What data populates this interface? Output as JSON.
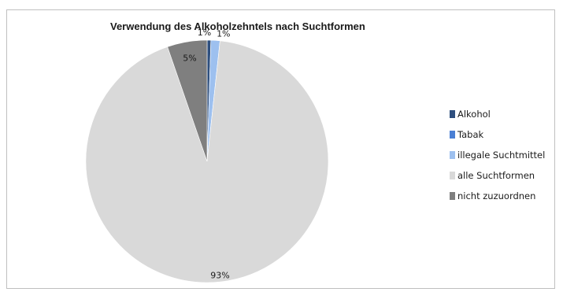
{
  "chart_data": {
    "type": "pie",
    "title": "Verwendung des Alkoholzehntels nach Suchtformen",
    "categories": [
      "Alkohol",
      "Tabak",
      "illegale Suchtmittel",
      "alle Suchtformen",
      "nicht zuzuordnen"
    ],
    "values": [
      0.5,
      0.0,
      1.2,
      93.0,
      5.3
    ],
    "data_labels": [
      "1%",
      "",
      "1%",
      "93%",
      "5%"
    ],
    "colors": [
      "#2e4f7e",
      "#4a7fd4",
      "#9dc0ef",
      "#d9d9d9",
      "#7f7f7f"
    ],
    "legend_position": "right"
  }
}
